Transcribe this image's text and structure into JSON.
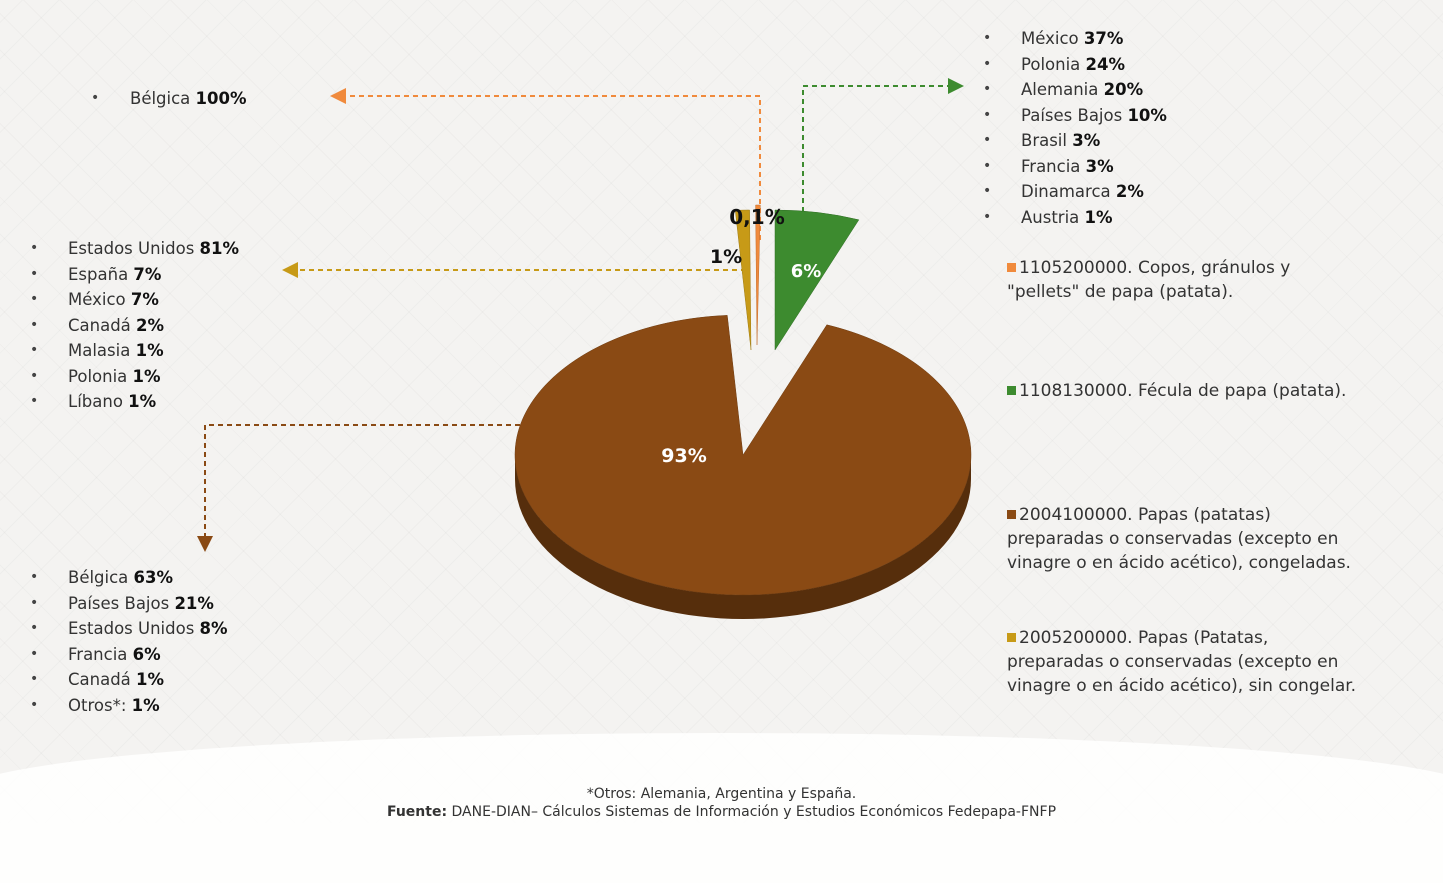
{
  "chart_data": {
    "type": "pie",
    "slices": [
      {
        "code": "1105200000",
        "label": "1105200000. Copos, gránulos y \"pellets\" de papa (patata).",
        "value": 0.1,
        "data_label": "0,1%",
        "color": "#f08a3c"
      },
      {
        "code": "1108130000",
        "label": "1108130000. Fécula de papa (patata).",
        "value": 6,
        "data_label": "6%",
        "color": "#3d8b2f"
      },
      {
        "code": "2004100000",
        "label": "2004100000. Papas (patatas) preparadas o conservadas (excepto en vinagre o en ácido acético), congeladas.",
        "value": 93,
        "data_label": "93%",
        "color": "#8a4a14"
      },
      {
        "code": "2005200000",
        "label": "2005200000. Papas (Patatas, preparadas o conservadas (excepto en vinagre o en ácido acético), sin congelar.",
        "value": 1,
        "data_label": "1%",
        "color": "#c79a17"
      }
    ],
    "destinations": [
      {
        "code": "1105200000",
        "countries": [
          {
            "name": "Bélgica",
            "pct": "100%"
          }
        ]
      },
      {
        "code": "1108130000",
        "countries": [
          {
            "name": "México",
            "pct": "37%"
          },
          {
            "name": "Polonia",
            "pct": "24%"
          },
          {
            "name": "Alemania",
            "pct": "20%"
          },
          {
            "name": "Países Bajos",
            "pct": "10%"
          },
          {
            "name": "Brasil",
            "pct": "3%"
          },
          {
            "name": "Francia",
            "pct": "3%"
          },
          {
            "name": "Dinamarca",
            "pct": "2%"
          },
          {
            "name": " Austria",
            "pct": "1%"
          }
        ]
      },
      {
        "code": "2004100000",
        "countries": [
          {
            "name": "Bélgica",
            "pct": "63%"
          },
          {
            "name": "Países Bajos",
            "pct": "21%"
          },
          {
            "name": "Estados Unidos",
            "pct": "8%"
          },
          {
            "name": "Francia",
            "pct": "6%"
          },
          {
            "name": "Canadá",
            "pct": "1%"
          },
          {
            "name": "Otros*:",
            "pct": "1%"
          }
        ]
      },
      {
        "code": "2005200000",
        "countries": [
          {
            "name": "Estados Unidos",
            "pct": "81%"
          },
          {
            "name": "España",
            "pct": "7%"
          },
          {
            "name": "México",
            "pct": "7%"
          },
          {
            "name": "Canadá",
            "pct": "2%"
          },
          {
            "name": "Malasia",
            "pct": "1%"
          },
          {
            "name": "Polonia ",
            "pct": "1%"
          },
          {
            "name": "Líbano",
            "pct": "1%"
          }
        ]
      }
    ]
  },
  "legend": [
    {
      "text": "1105200000. Copos, gránulos y \"pellets\" de papa (patata).",
      "color": "#f08a3c"
    },
    {
      "text": "1108130000. Fécula de papa (patata).",
      "color": "#3d8b2f"
    },
    {
      "text": "2004100000. Papas (patatas) preparadas o conservadas (excepto en vinagre o en ácido acético), congeladas.",
      "color": "#8a4a14"
    },
    {
      "text": "2005200000. Papas (Patatas, preparadas o conservadas (excepto en vinagre o en ácido acético), sin congelar.",
      "color": "#c79a17"
    }
  ],
  "footnote": {
    "otros": "*Otros: Alemania, Argentina y España.",
    "fuente_label": "Fuente:",
    "fuente_text": " DANE-DIAN– Cálculos Sistemas de Información y Estudios Económicos Fedepapa-FNFP"
  }
}
